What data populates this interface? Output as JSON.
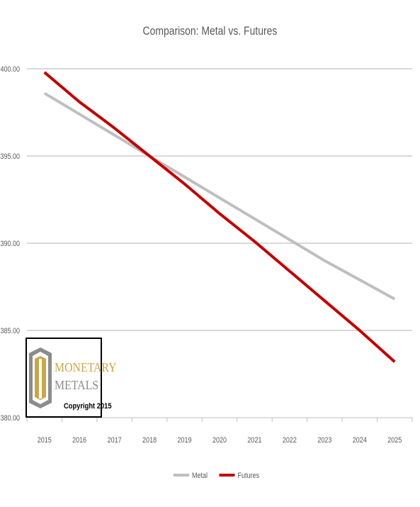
{
  "chart_data": {
    "type": "line",
    "title": "Comparison: Metal vs. Futures",
    "xlabel": "",
    "ylabel": "",
    "x": [
      "2015",
      "2016",
      "2017",
      "2018",
      "2019",
      "2020",
      "2021",
      "2022",
      "2023",
      "2024",
      "2025"
    ],
    "ylim": [
      380,
      400
    ],
    "yticks": [
      "380.00",
      "385.00",
      "390.00",
      "395.00",
      "400.00"
    ],
    "grid": true,
    "legend_position": "bottom",
    "series": [
      {
        "name": "Metal",
        "color": "#bfbfbf",
        "values": [
          398.6,
          397.4,
          396.2,
          395.0,
          393.8,
          392.6,
          391.4,
          390.2,
          389.0,
          387.9,
          386.8
        ]
      },
      {
        "name": "Futures",
        "color": "#c00000",
        "values": [
          399.8,
          398.1,
          396.6,
          395.0,
          393.4,
          391.7,
          390.1,
          388.4,
          386.7,
          385.0,
          383.2
        ]
      }
    ]
  },
  "logo": {
    "word1": "MONETARY",
    "word2": "METALS",
    "copyright": "Copyright 2015",
    "gold": "#c9a64a",
    "grey": "#8c8c8c"
  }
}
